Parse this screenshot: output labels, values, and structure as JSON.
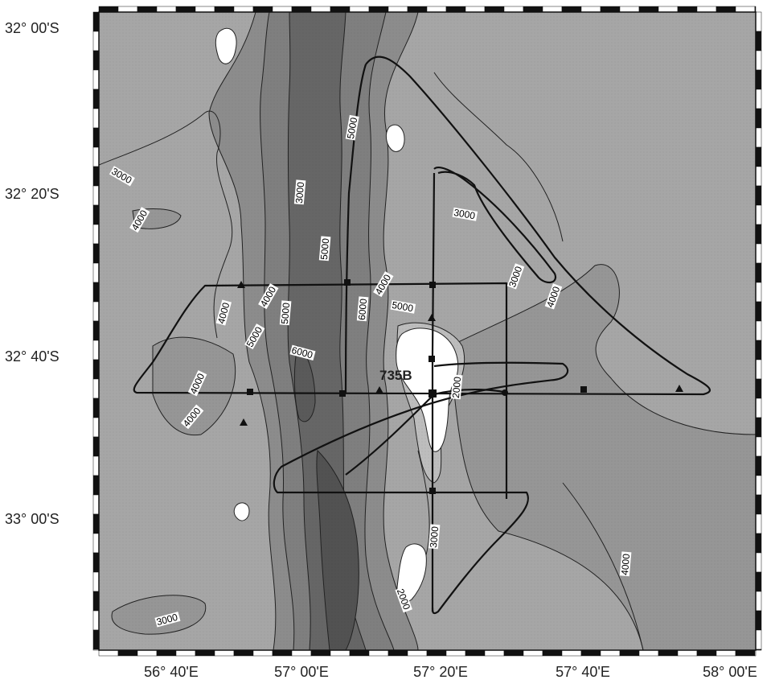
{
  "map": {
    "lat_labels": [
      "32° 00'S",
      "32° 20'S",
      "32° 40'S",
      "33° 00'S"
    ],
    "lon_labels": [
      "56° 40'E",
      "57° 00'E",
      "57° 20'E",
      "57° 40'E",
      "58° 00'E"
    ],
    "site_label": "735B",
    "contour_labels": [
      "3000",
      "4000",
      "5000",
      "5000",
      "4000",
      "6000",
      "5000",
      "4000",
      "5000",
      "6000",
      "4000",
      "5000",
      "4000",
      "3000",
      "2000",
      "3000",
      "4000",
      "4000",
      "3000",
      "3000",
      "2000",
      "4000",
      "3000"
    ],
    "colors": {
      "deep": "#4f4f4f",
      "d6000": "#666666",
      "d5000": "#7f7f7f",
      "d4000": "#969696",
      "d3000": "#a6a6a6",
      "shallow": "#d2d2d2",
      "island": "#ffffff",
      "track": "#111111"
    }
  }
}
